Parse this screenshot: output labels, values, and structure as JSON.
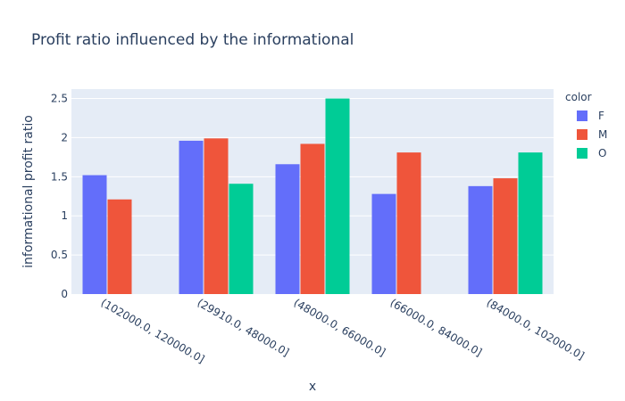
{
  "chart_data": {
    "type": "bar",
    "title": "Profit ratio influenced by the informational",
    "xlabel": "x",
    "ylabel": "informational profit ratio",
    "categories": [
      "(102000.0, 120000.0]",
      "(29910.0, 48000.0]",
      "(48000.0, 66000.0]",
      "(66000.0, 84000.0]",
      "(84000.0, 102000.0]"
    ],
    "ylim": [
      0,
      2.62
    ],
    "yticks": [
      0,
      0.5,
      1,
      1.5,
      2,
      2.5
    ],
    "ytick_labels": [
      "0",
      "0.5",
      "1",
      "1.5",
      "2",
      "2.5"
    ],
    "grid": true,
    "legend": {
      "title": "color",
      "placement": "top-right"
    },
    "series": [
      {
        "name": "F",
        "color": "#636efa",
        "values": [
          1.52,
          1.96,
          1.66,
          1.28,
          1.38
        ]
      },
      {
        "name": "M",
        "color": "#ef553b",
        "values": [
          1.21,
          1.99,
          1.92,
          1.81,
          1.48
        ]
      },
      {
        "name": "O",
        "color": "#00cc96",
        "values": [
          null,
          1.41,
          2.5,
          null,
          1.81
        ]
      }
    ]
  }
}
